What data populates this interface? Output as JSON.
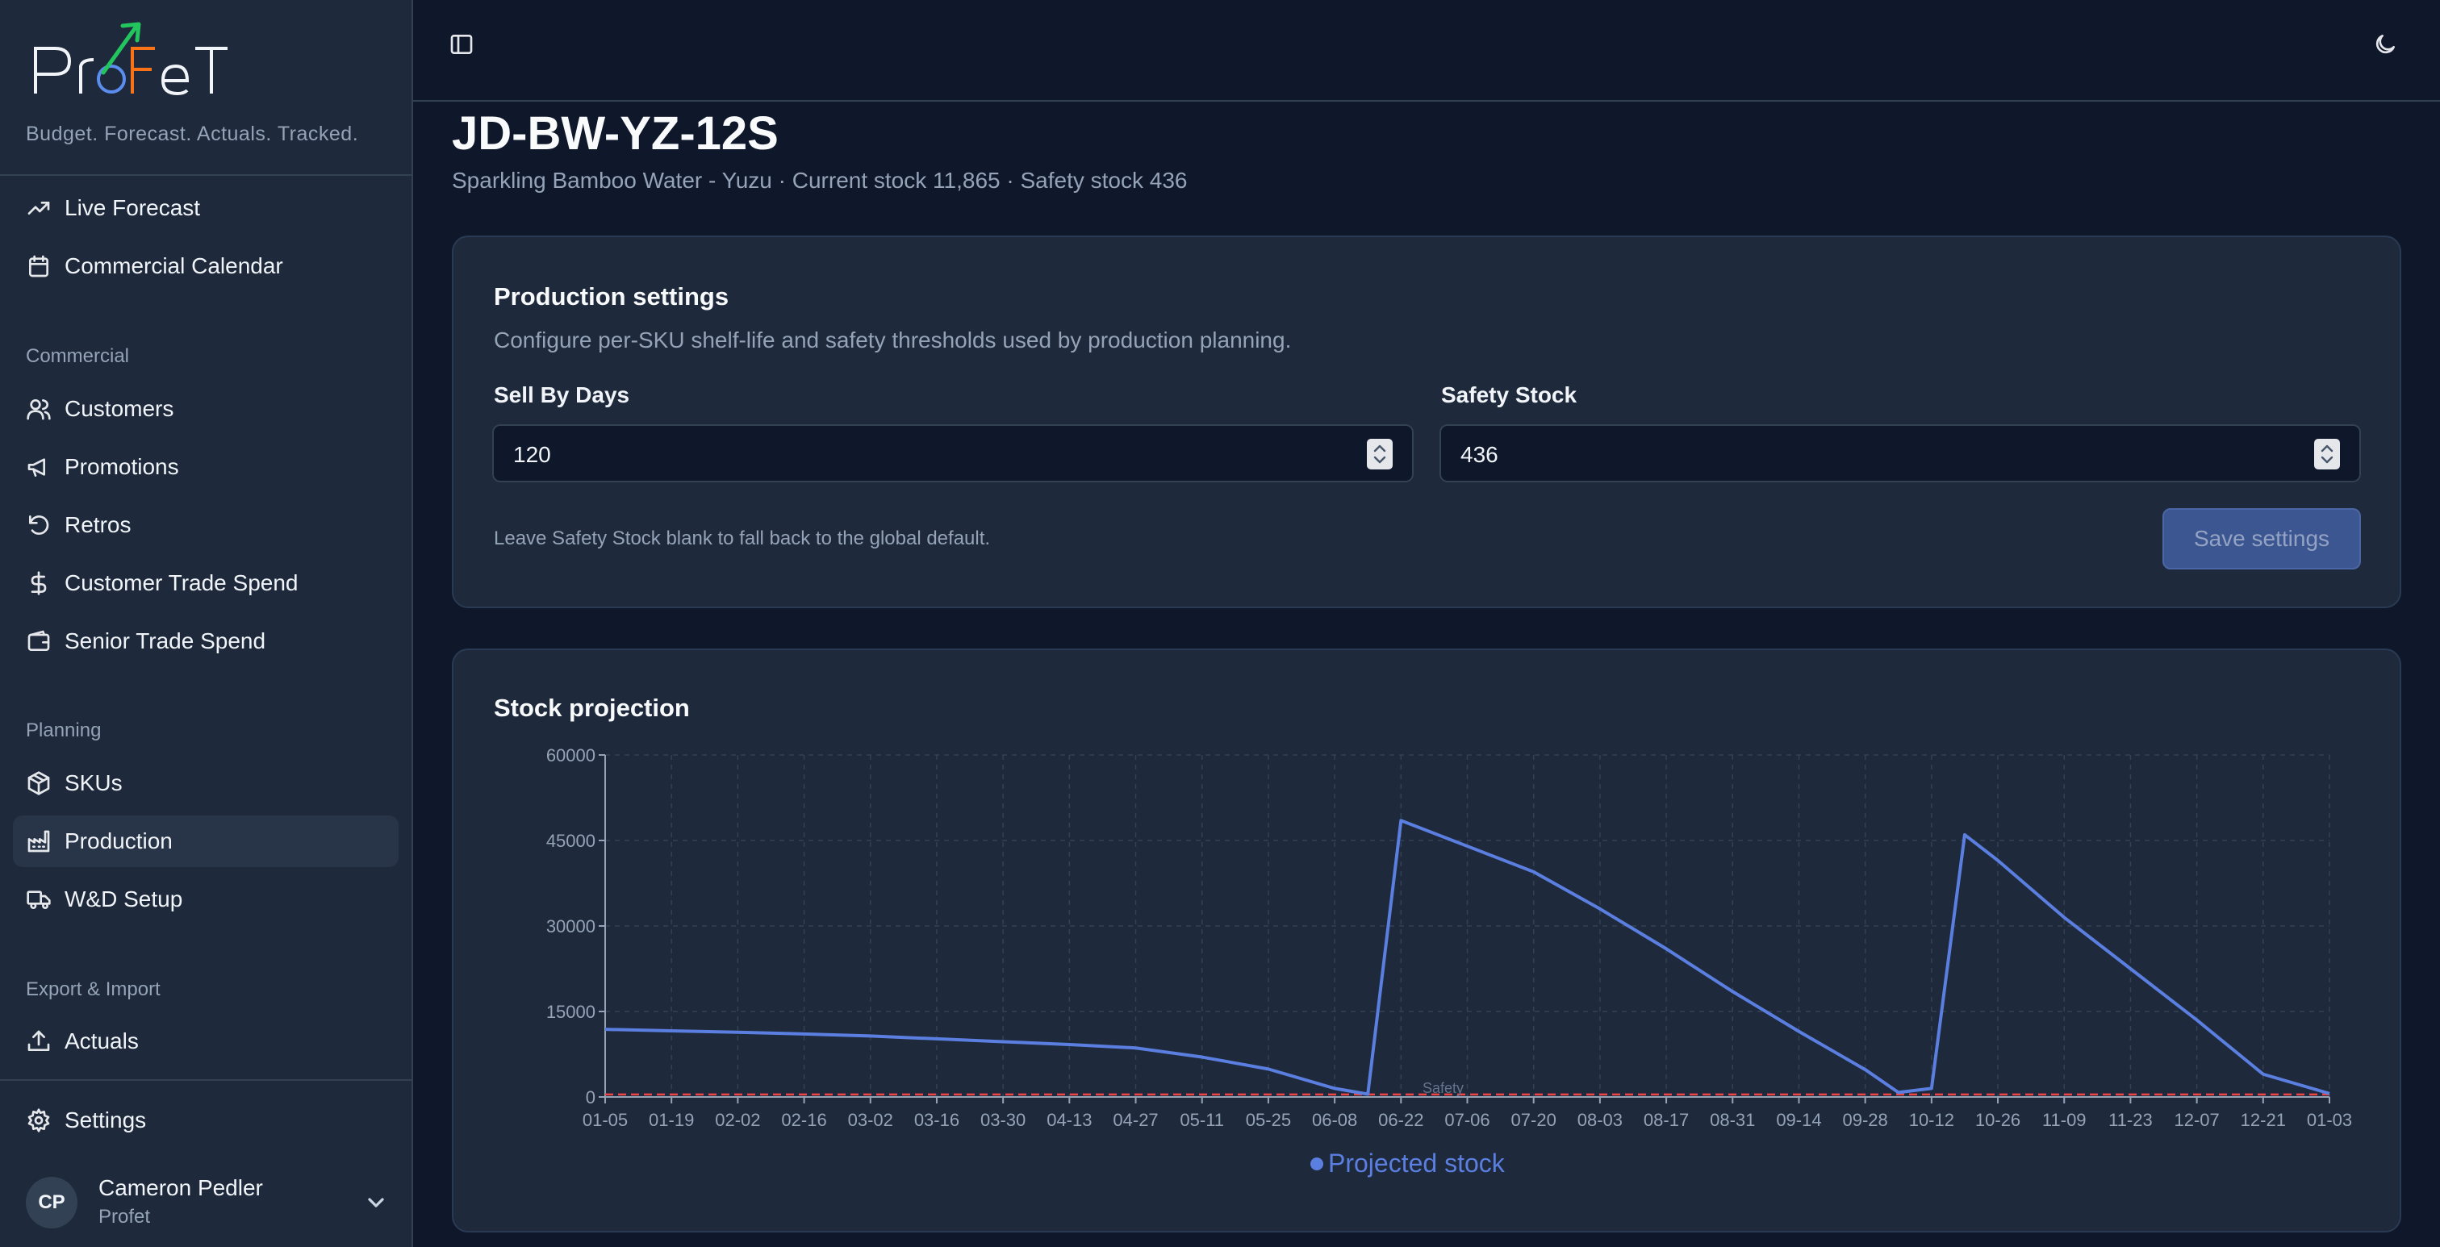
{
  "brand": {
    "logo_text": "ProFeT",
    "tagline": "Budget. Forecast. Actuals. Tracked."
  },
  "sidebar": {
    "top_items": [
      {
        "label": "Live Forecast",
        "icon": "trending-up-icon"
      },
      {
        "label": "Commercial Calendar",
        "icon": "calendar-icon"
      }
    ],
    "groups": [
      {
        "label": "Commercial",
        "items": [
          {
            "label": "Customers",
            "icon": "users-icon"
          },
          {
            "label": "Promotions",
            "icon": "megaphone-icon"
          },
          {
            "label": "Retros",
            "icon": "rotate-ccw-icon"
          },
          {
            "label": "Customer Trade Spend",
            "icon": "dollar-sign-icon"
          },
          {
            "label": "Senior Trade Spend",
            "icon": "wallet-icon"
          }
        ]
      },
      {
        "label": "Planning",
        "items": [
          {
            "label": "SKUs",
            "icon": "package-icon"
          },
          {
            "label": "Production",
            "icon": "factory-icon",
            "active": true
          },
          {
            "label": "W&D Setup",
            "icon": "truck-icon"
          }
        ]
      },
      {
        "label": "Export & Import",
        "items": [
          {
            "label": "Actuals",
            "icon": "upload-icon"
          }
        ]
      }
    ],
    "settings_label": "Settings",
    "user": {
      "initials": "CP",
      "name": "Cameron Pedler",
      "org": "Profet"
    }
  },
  "topbar": {
    "toggle_sidebar_icon": "panel-left-icon",
    "theme_icon": "moon-icon"
  },
  "page": {
    "title": "JD-BW-YZ-12S",
    "subtitle": "Sparkling Bamboo Water - Yuzu · Current stock 11,865 · Safety stock 436"
  },
  "production_settings": {
    "title": "Production settings",
    "description": "Configure per-SKU shelf-life and safety thresholds used by production planning.",
    "sell_by_days_label": "Sell By Days",
    "sell_by_days_value": "120",
    "safety_stock_label": "Safety Stock",
    "safety_stock_value": "436",
    "hint": "Leave Safety Stock blank to fall back to the global default.",
    "save_label": "Save settings"
  },
  "stock_projection": {
    "title": "Stock projection"
  },
  "colors": {
    "line": "#5b7fe0",
    "safety": "#ef4444",
    "accent_logo": "#22c55e"
  },
  "chart_data": {
    "type": "line",
    "title": "Stock projection",
    "ylim": [
      0,
      60000
    ],
    "yticks": [
      0,
      15000,
      30000,
      45000,
      60000
    ],
    "x_tick_labels": [
      "01-05",
      "01-19",
      "02-02",
      "02-16",
      "03-02",
      "03-16",
      "03-30",
      "04-13",
      "04-27",
      "05-11",
      "05-25",
      "06-08",
      "06-22",
      "07-06",
      "07-20",
      "08-03",
      "08-17",
      "08-31",
      "09-14",
      "09-28",
      "10-12",
      "10-26",
      "11-09",
      "11-23",
      "12-07",
      "12-21",
      "01-03"
    ],
    "grid": true,
    "legend_position": "bottom",
    "series": [
      {
        "name": "Projected stock",
        "x": [
          "01-05",
          "01-19",
          "02-02",
          "02-16",
          "03-02",
          "03-16",
          "03-30",
          "04-13",
          "04-27",
          "05-11",
          "05-25",
          "06-08",
          "06-15",
          "06-22",
          "07-06",
          "07-20",
          "08-03",
          "08-17",
          "08-31",
          "09-14",
          "09-28",
          "10-05",
          "10-12",
          "10-19",
          "10-26",
          "11-09",
          "11-23",
          "12-07",
          "12-21",
          "01-03"
        ],
        "values": [
          11865,
          11600,
          11350,
          11050,
          10700,
          10200,
          9700,
          9200,
          8600,
          7000,
          4900,
          1500,
          500,
          48500,
          44000,
          39500,
          33000,
          26000,
          18500,
          11500,
          4800,
          800,
          1500,
          46000,
          41500,
          31500,
          22500,
          13500,
          4000,
          600
        ]
      },
      {
        "name": "Safety",
        "dashed": true,
        "values_constant": 436
      }
    ],
    "safety_label": "Safety"
  }
}
